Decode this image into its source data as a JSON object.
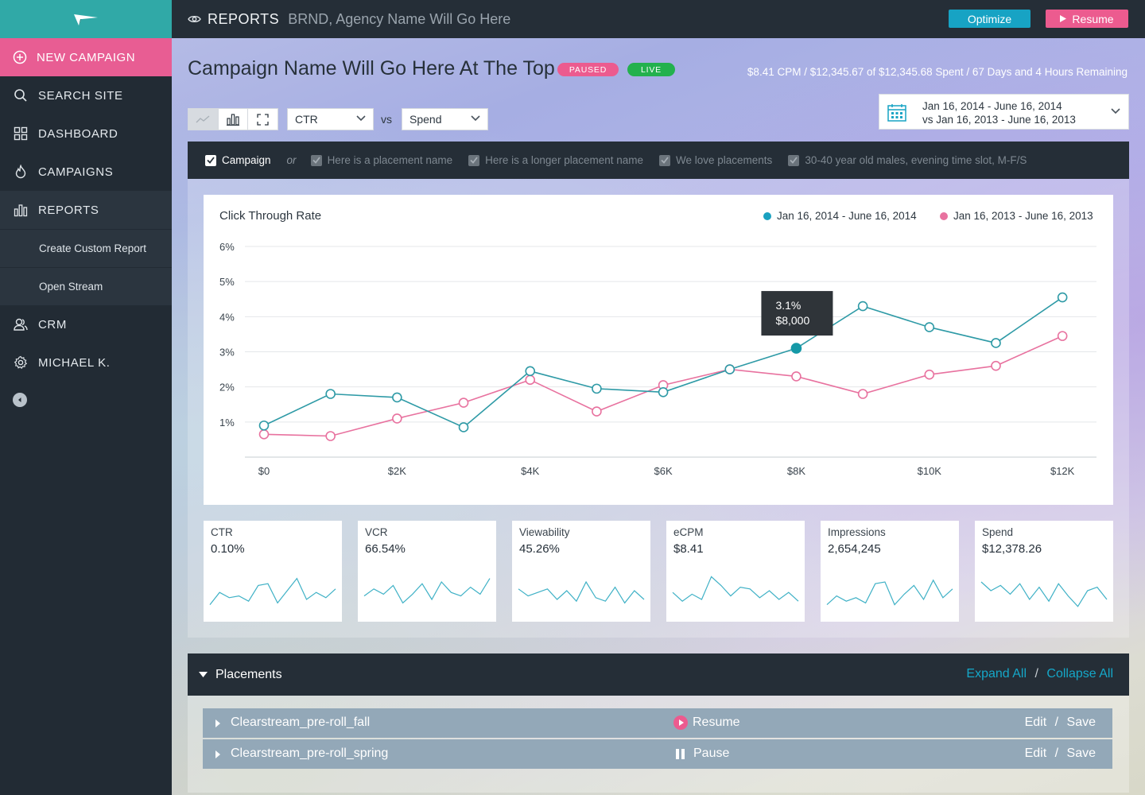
{
  "sidebar": {
    "new_campaign": "NEW CAMPAIGN",
    "items": [
      {
        "label": "SEARCH SITE",
        "icon": "search-icon"
      },
      {
        "label": "DASHBOARD",
        "icon": "grid-icon"
      },
      {
        "label": "CAMPAIGNS",
        "icon": "flame-icon"
      },
      {
        "label": "REPORTS",
        "icon": "bar-chart-icon"
      },
      {
        "label": "CRM",
        "icon": "users-icon"
      },
      {
        "label": "MICHAEL K.",
        "icon": "gear-icon"
      }
    ],
    "report_sub_items": [
      "Create Custom Report",
      "Open Stream"
    ]
  },
  "topbar": {
    "section": "REPORTS",
    "agency": "BRND, Agency Name Will Go Here",
    "optimize_label": "Optimize",
    "resume_label": "Resume"
  },
  "campaign": {
    "title": "Campaign Name Will Go Here At The Top",
    "badges": {
      "paused": "PAUSED",
      "live": "LIVE"
    },
    "stats": "$8.41 CPM / $12,345.67 of $12,345.68 Spent / 67 Days and 4 Hours Remaining"
  },
  "controls": {
    "metric_1": "CTR",
    "vs": "vs",
    "metric_2": "Spend",
    "date_range_primary": "Jan 16, 2014 - June 16, 2014",
    "date_range_compare": "vs Jan 16, 2013 - June 16, 2013"
  },
  "filters": {
    "campaign_label": "Campaign",
    "or": "or",
    "placements": [
      "Here is a placement name",
      "Here is a longer placement name",
      "We love placements",
      "30-40 year old males, evening time slot, M-F/S"
    ]
  },
  "chart_data": {
    "type": "line",
    "title": "Click Through Rate",
    "x_tick_labels": [
      "$0",
      "$2K",
      "$4K",
      "$6K",
      "$8K",
      "$10K",
      "$12K"
    ],
    "y_tick_labels": [
      "1%",
      "2%",
      "3%",
      "4%",
      "5%",
      "6%"
    ],
    "xlim": [
      0,
      12500
    ],
    "ylim": [
      0,
      6
    ],
    "x": [
      0,
      1000,
      2000,
      3000,
      4000,
      5000,
      6000,
      7000,
      8000,
      9000,
      10000,
      11000,
      12000
    ],
    "series": [
      {
        "name": "Jan 16, 2014 - June 16, 2014",
        "color": "#2e9aa6",
        "values": [
          0.9,
          1.8,
          1.7,
          0.85,
          2.45,
          1.95,
          1.85,
          2.5,
          3.1,
          4.3,
          3.7,
          3.25,
          4.55
        ]
      },
      {
        "name": "Jan 16, 2013 - June 16, 2013",
        "color": "#e8729f",
        "values": [
          0.65,
          0.6,
          1.1,
          1.55,
          2.2,
          1.3,
          2.05,
          2.5,
          2.3,
          1.8,
          2.35,
          2.6,
          3.45
        ]
      }
    ],
    "tooltip": {
      "line1": "3.1%",
      "line2": "$8,000",
      "point_index": 8
    },
    "grid": true,
    "legend_position": "top-right"
  },
  "metrics": [
    {
      "label": "CTR",
      "value": "0.10%",
      "spark": [
        4,
        18,
        12,
        14,
        8,
        26,
        28,
        6,
        20,
        34,
        10,
        18,
        12,
        22
      ]
    },
    {
      "label": "VCR",
      "value": "66.54%",
      "spark": [
        14,
        22,
        16,
        26,
        6,
        16,
        28,
        10,
        30,
        18,
        14,
        24,
        16,
        34
      ]
    },
    {
      "label": "Viewability",
      "value": "45.26%",
      "spark": [
        22,
        14,
        18,
        22,
        10,
        20,
        8,
        30,
        12,
        8,
        24,
        6,
        20,
        10
      ]
    },
    {
      "label": "eCPM",
      "value": "$8.41",
      "spark": [
        18,
        8,
        16,
        10,
        36,
        26,
        14,
        24,
        22,
        12,
        20,
        10,
        18,
        8
      ]
    },
    {
      "label": "Impressions",
      "value": "2,654,245",
      "spark": [
        4,
        14,
        8,
        12,
        6,
        28,
        30,
        4,
        16,
        26,
        10,
        32,
        12,
        22
      ]
    },
    {
      "label": "Spend",
      "value": "$12,378.26",
      "spark": [
        30,
        20,
        26,
        16,
        28,
        10,
        24,
        8,
        28,
        14,
        2,
        20,
        24,
        10
      ]
    }
  ],
  "placements": {
    "title": "Placements",
    "expand_all": "Expand All",
    "separator": "/",
    "collapse_all": "Collapse All",
    "edit": "Edit",
    "save": "Save",
    "rows": [
      {
        "name": "Clearstream_pre-roll_fall",
        "action": "Resume",
        "action_icon": "play-circle-icon"
      },
      {
        "name": "Clearstream_pre-roll_spring",
        "action": "Pause",
        "action_icon": "pause-icon"
      }
    ]
  },
  "colors": {
    "accent_teal": "#17a3c4",
    "accent_pink": "#ec5b8f",
    "live_green": "#23b14d",
    "dark_bar": "#252e37",
    "sidebar": "#222b34"
  }
}
